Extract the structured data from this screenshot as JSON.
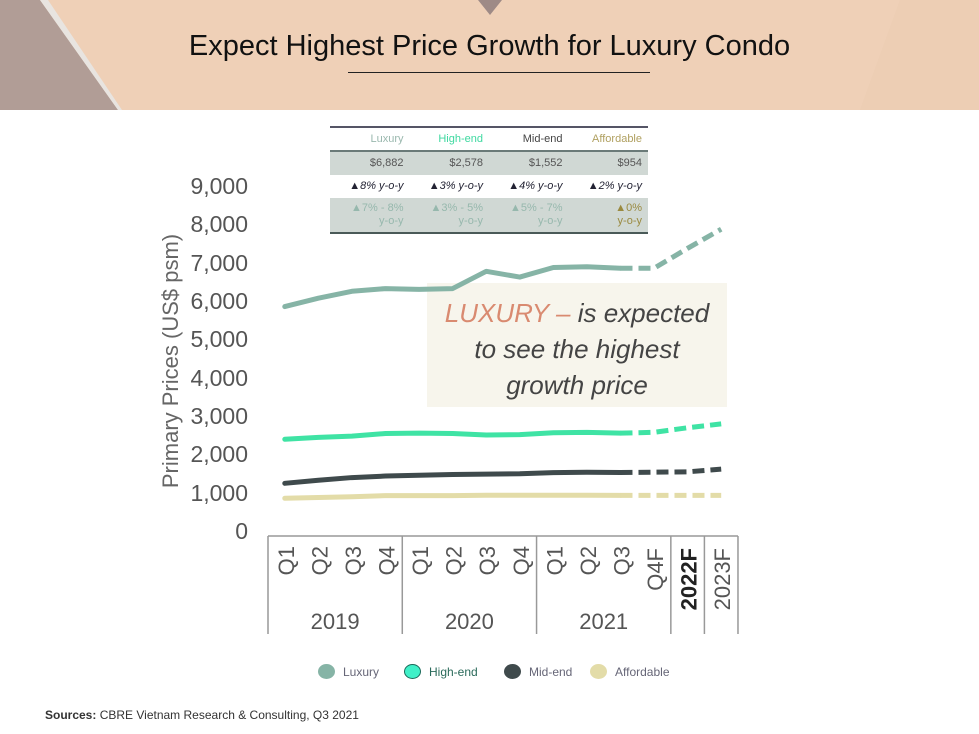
{
  "header": {
    "title": "Expect Highest Price Growth for Luxury Condo"
  },
  "table": {
    "columns": [
      "Luxury",
      "High-end",
      "Mid-end",
      "Affordable"
    ],
    "column_colors": [
      "#9ab8ae",
      "#3ed9a0",
      "#444444",
      "#b0a060"
    ],
    "prices": [
      "$6,882",
      "$2,578",
      "$1,552",
      "$954"
    ],
    "yoy": [
      "▲8% y-o-y",
      "▲3% y-o-y",
      "▲4% y-o-y",
      "▲2% y-o-y"
    ],
    "forecast": [
      {
        "a": "▲7% - 8%",
        "b": "y-o-y"
      },
      {
        "a": "▲3% - 5%",
        "b": "y-o-y"
      },
      {
        "a": "▲5% - 7%",
        "b": "y-o-y"
      },
      {
        "a": "▲0%",
        "b": "y-o-y"
      }
    ]
  },
  "annotation": {
    "highlight": "LUXURY –",
    "line1": " is expected",
    "line2": "to see the highest",
    "line3": "growth price"
  },
  "sources": {
    "label": "Sources:",
    "text": " CBRE Vietnam Research & Consulting, Q3 2021"
  },
  "chart_data": {
    "type": "line",
    "ylabel": "Primary Prices (US$ psm)",
    "ylim": [
      0,
      9000
    ],
    "yticks": [
      "0",
      "1,000",
      "2,000",
      "3,000",
      "4,000",
      "5,000",
      "6,000",
      "7,000",
      "8,000",
      "9,000"
    ],
    "x": [
      "Q1",
      "Q2",
      "Q3",
      "Q4",
      "Q1",
      "Q2",
      "Q3",
      "Q4",
      "Q1",
      "Q2",
      "Q3",
      "Q4F",
      "2022F",
      "2023F"
    ],
    "year_groups": [
      "2019",
      "2020",
      "2021"
    ],
    "actual_count": 11,
    "series": [
      {
        "name": "Luxury",
        "color": "#86b4a6",
        "values": [
          5880,
          6100,
          6280,
          6350,
          6330,
          6350,
          6800,
          6650,
          6900,
          6920,
          6882,
          6880,
          7400,
          7900
        ]
      },
      {
        "name": "High-end",
        "color": "#3fe3a4",
        "values": [
          2420,
          2470,
          2500,
          2570,
          2580,
          2570,
          2530,
          2540,
          2590,
          2600,
          2578,
          2600,
          2720,
          2820
        ]
      },
      {
        "name": "Mid-end",
        "color": "#3f4a4c",
        "values": [
          1270,
          1350,
          1420,
          1460,
          1480,
          1500,
          1510,
          1520,
          1550,
          1560,
          1552,
          1560,
          1570,
          1640
        ]
      },
      {
        "name": "Affordable",
        "color": "#e3dca8",
        "values": [
          880,
          900,
          920,
          950,
          950,
          950,
          960,
          960,
          960,
          960,
          954,
          954,
          954,
          954
        ]
      }
    ],
    "legend": "bottom"
  }
}
